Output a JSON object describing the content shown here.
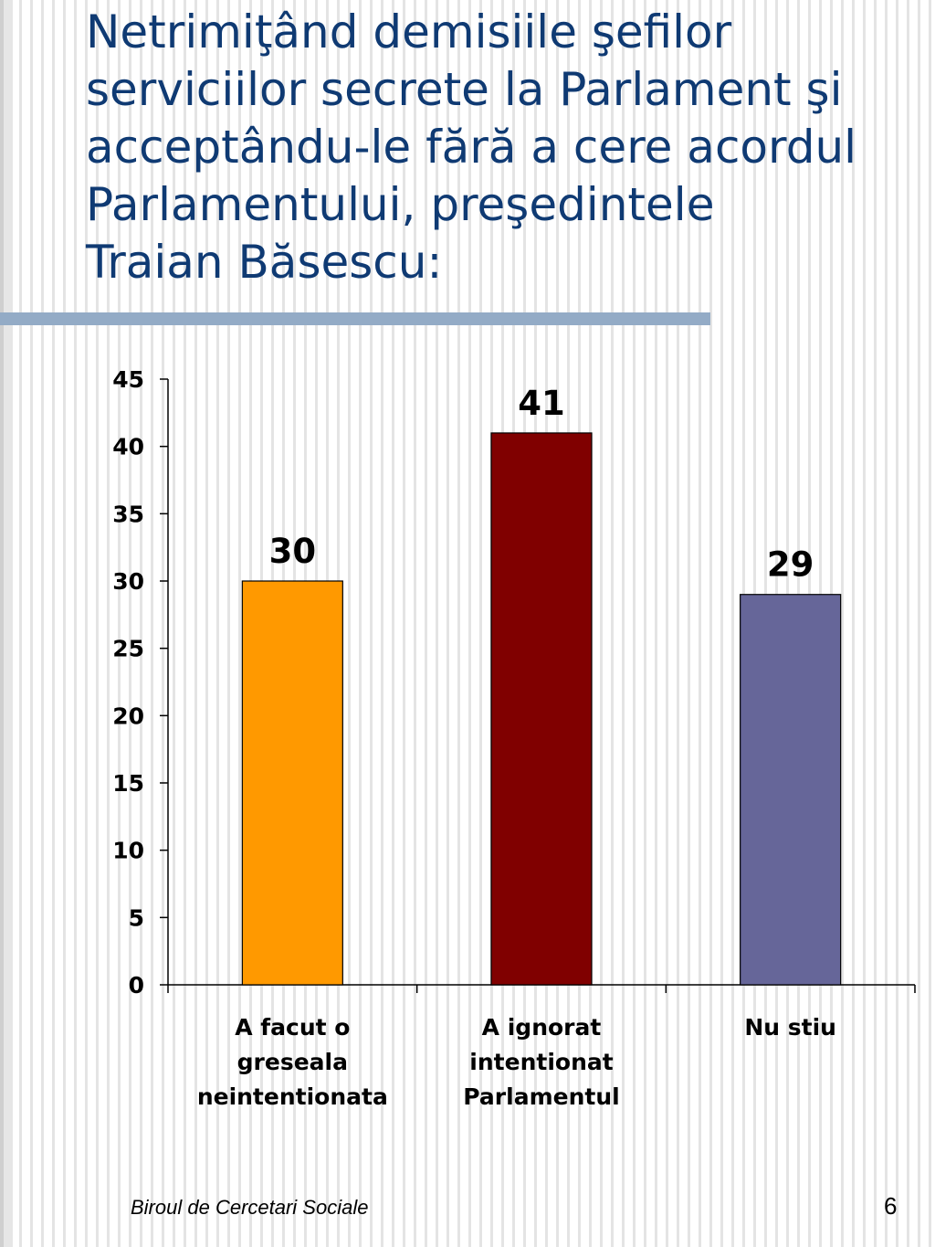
{
  "slide": {
    "title_lines": [
      "Netrimiţând demisiile şefilor",
      "serviciilor secrete la Parlament şi",
      "acceptându-le fără a cere acordul",
      "Parlamentului, preşedintele",
      "Traian Băsescu:"
    ],
    "footer_source": "Biroul de Cercetari Sociale",
    "page_number": "6",
    "rule_color": "#93abc6",
    "title_color": "#0f3a73"
  },
  "chart_data": {
    "type": "bar",
    "title": "",
    "xlabel": "",
    "ylabel": "",
    "categories": [
      [
        "A facut o",
        "greseala",
        "neintentionata"
      ],
      [
        "A ignorat",
        "intentionat",
        "Parlamentul"
      ],
      [
        "Nu stiu"
      ]
    ],
    "values": [
      30,
      41,
      29
    ],
    "value_labels": [
      "30",
      "41",
      "29"
    ],
    "colors": [
      "#ff9900",
      "#800000",
      "#666699"
    ],
    "ylim": [
      0,
      45
    ],
    "yticks": [
      0,
      5,
      10,
      15,
      20,
      25,
      30,
      35,
      40,
      45
    ],
    "grid": false,
    "legend": "none"
  }
}
